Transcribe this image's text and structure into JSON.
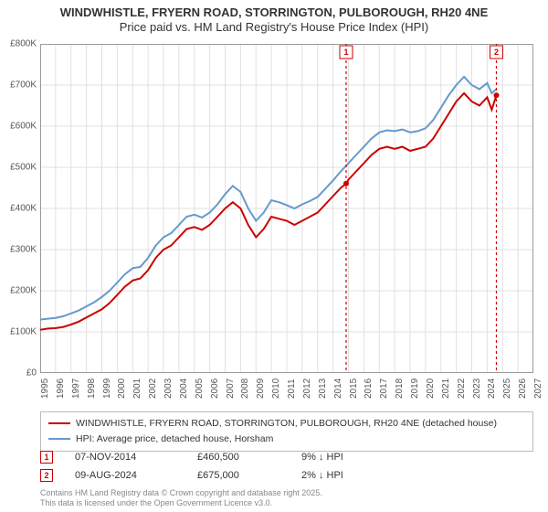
{
  "title": {
    "line1": "WINDWHISTLE, FRYERN ROAD, STORRINGTON, PULBOROUGH, RH20 4NE",
    "line2": "Price paid vs. HM Land Registry's House Price Index (HPI)"
  },
  "chart": {
    "type": "line",
    "background_color": "#ffffff",
    "grid_color": "#e0e0e0",
    "border_color": "#999999",
    "x_start": 1995,
    "x_end": 2027,
    "y_start": 0,
    "y_end": 800000,
    "y_ticks": [
      0,
      100000,
      200000,
      300000,
      400000,
      500000,
      600000,
      700000,
      800000
    ],
    "y_tick_labels": [
      "£0",
      "£100K",
      "£200K",
      "£300K",
      "£400K",
      "£500K",
      "£600K",
      "£700K",
      "£800K"
    ],
    "x_ticks": [
      1995,
      1996,
      1997,
      1998,
      1999,
      2000,
      2001,
      2002,
      2003,
      2004,
      2005,
      2006,
      2007,
      2008,
      2009,
      2010,
      2011,
      2012,
      2013,
      2014,
      2015,
      2016,
      2017,
      2018,
      2019,
      2020,
      2021,
      2022,
      2023,
      2024,
      2025,
      2026,
      2027
    ],
    "series": [
      {
        "name": "price_paid",
        "label": "WINDWHISTLE, FRYERN ROAD, STORRINGTON, PULBOROUGH, RH20 4NE (detached house)",
        "color": "#cc0000",
        "line_width": 2,
        "points": [
          [
            1995.0,
            105000
          ],
          [
            1995.5,
            108000
          ],
          [
            1996.0,
            109000
          ],
          [
            1996.5,
            112000
          ],
          [
            1997.0,
            118000
          ],
          [
            1997.5,
            125000
          ],
          [
            1998.0,
            135000
          ],
          [
            1998.5,
            145000
          ],
          [
            1999.0,
            155000
          ],
          [
            1999.5,
            170000
          ],
          [
            2000.0,
            190000
          ],
          [
            2000.5,
            210000
          ],
          [
            2001.0,
            225000
          ],
          [
            2001.5,
            230000
          ],
          [
            2002.0,
            250000
          ],
          [
            2002.5,
            280000
          ],
          [
            2003.0,
            300000
          ],
          [
            2003.5,
            310000
          ],
          [
            2004.0,
            330000
          ],
          [
            2004.5,
            350000
          ],
          [
            2005.0,
            355000
          ],
          [
            2005.5,
            348000
          ],
          [
            2006.0,
            360000
          ],
          [
            2006.5,
            380000
          ],
          [
            2007.0,
            400000
          ],
          [
            2007.5,
            415000
          ],
          [
            2008.0,
            400000
          ],
          [
            2008.5,
            360000
          ],
          [
            2009.0,
            330000
          ],
          [
            2009.5,
            350000
          ],
          [
            2010.0,
            380000
          ],
          [
            2010.5,
            375000
          ],
          [
            2011.0,
            370000
          ],
          [
            2011.5,
            360000
          ],
          [
            2012.0,
            370000
          ],
          [
            2012.5,
            380000
          ],
          [
            2013.0,
            390000
          ],
          [
            2013.5,
            410000
          ],
          [
            2014.0,
            430000
          ],
          [
            2014.5,
            450000
          ],
          [
            2014.85,
            460500
          ],
          [
            2015.0,
            470000
          ],
          [
            2015.5,
            490000
          ],
          [
            2016.0,
            510000
          ],
          [
            2016.5,
            530000
          ],
          [
            2017.0,
            545000
          ],
          [
            2017.5,
            550000
          ],
          [
            2018.0,
            545000
          ],
          [
            2018.5,
            550000
          ],
          [
            2019.0,
            540000
          ],
          [
            2019.5,
            545000
          ],
          [
            2020.0,
            550000
          ],
          [
            2020.5,
            570000
          ],
          [
            2021.0,
            600000
          ],
          [
            2021.5,
            630000
          ],
          [
            2022.0,
            660000
          ],
          [
            2022.5,
            680000
          ],
          [
            2023.0,
            660000
          ],
          [
            2023.5,
            650000
          ],
          [
            2024.0,
            670000
          ],
          [
            2024.3,
            640000
          ],
          [
            2024.6,
            675000
          ]
        ]
      },
      {
        "name": "hpi",
        "label": "HPI: Average price, detached house, Horsham",
        "color": "#6699cc",
        "line_width": 2,
        "points": [
          [
            1995.0,
            130000
          ],
          [
            1995.5,
            132000
          ],
          [
            1996.0,
            134000
          ],
          [
            1996.5,
            138000
          ],
          [
            1997.0,
            145000
          ],
          [
            1997.5,
            152000
          ],
          [
            1998.0,
            162000
          ],
          [
            1998.5,
            172000
          ],
          [
            1999.0,
            185000
          ],
          [
            1999.5,
            200000
          ],
          [
            2000.0,
            220000
          ],
          [
            2000.5,
            240000
          ],
          [
            2001.0,
            255000
          ],
          [
            2001.5,
            258000
          ],
          [
            2002.0,
            280000
          ],
          [
            2002.5,
            310000
          ],
          [
            2003.0,
            330000
          ],
          [
            2003.5,
            340000
          ],
          [
            2004.0,
            360000
          ],
          [
            2004.5,
            380000
          ],
          [
            2005.0,
            385000
          ],
          [
            2005.5,
            378000
          ],
          [
            2006.0,
            390000
          ],
          [
            2006.5,
            410000
          ],
          [
            2007.0,
            435000
          ],
          [
            2007.5,
            455000
          ],
          [
            2008.0,
            440000
          ],
          [
            2008.5,
            400000
          ],
          [
            2009.0,
            370000
          ],
          [
            2009.5,
            390000
          ],
          [
            2010.0,
            420000
          ],
          [
            2010.5,
            415000
          ],
          [
            2011.0,
            408000
          ],
          [
            2011.5,
            400000
          ],
          [
            2012.0,
            410000
          ],
          [
            2012.5,
            418000
          ],
          [
            2013.0,
            428000
          ],
          [
            2013.5,
            448000
          ],
          [
            2014.0,
            468000
          ],
          [
            2014.5,
            490000
          ],
          [
            2015.0,
            510000
          ],
          [
            2015.5,
            530000
          ],
          [
            2016.0,
            550000
          ],
          [
            2016.5,
            570000
          ],
          [
            2017.0,
            585000
          ],
          [
            2017.5,
            590000
          ],
          [
            2018.0,
            588000
          ],
          [
            2018.5,
            592000
          ],
          [
            2019.0,
            585000
          ],
          [
            2019.5,
            588000
          ],
          [
            2020.0,
            595000
          ],
          [
            2020.5,
            615000
          ],
          [
            2021.0,
            645000
          ],
          [
            2021.5,
            675000
          ],
          [
            2022.0,
            700000
          ],
          [
            2022.5,
            720000
          ],
          [
            2023.0,
            700000
          ],
          [
            2023.5,
            690000
          ],
          [
            2024.0,
            705000
          ],
          [
            2024.3,
            680000
          ],
          [
            2024.6,
            690000
          ]
        ]
      }
    ],
    "markers": [
      {
        "n": "1",
        "x": 2014.85,
        "color": "#cc0000"
      },
      {
        "n": "2",
        "x": 2024.6,
        "color": "#cc0000"
      }
    ]
  },
  "legend": {
    "items": [
      {
        "color": "#cc0000",
        "label": "WINDWHISTLE, FRYERN ROAD, STORRINGTON, PULBOROUGH, RH20 4NE (detached house)"
      },
      {
        "color": "#6699cc",
        "label": "HPI: Average price, detached house, Horsham"
      }
    ]
  },
  "sales": [
    {
      "n": "1",
      "color": "#cc0000",
      "date": "07-NOV-2014",
      "price": "£460,500",
      "diff": "9% ↓ HPI"
    },
    {
      "n": "2",
      "color": "#cc0000",
      "date": "09-AUG-2024",
      "price": "£675,000",
      "diff": "2% ↓ HPI"
    }
  ],
  "attribution": {
    "line1": "Contains HM Land Registry data © Crown copyright and database right 2025.",
    "line2": "This data is licensed under the Open Government Licence v3.0."
  }
}
